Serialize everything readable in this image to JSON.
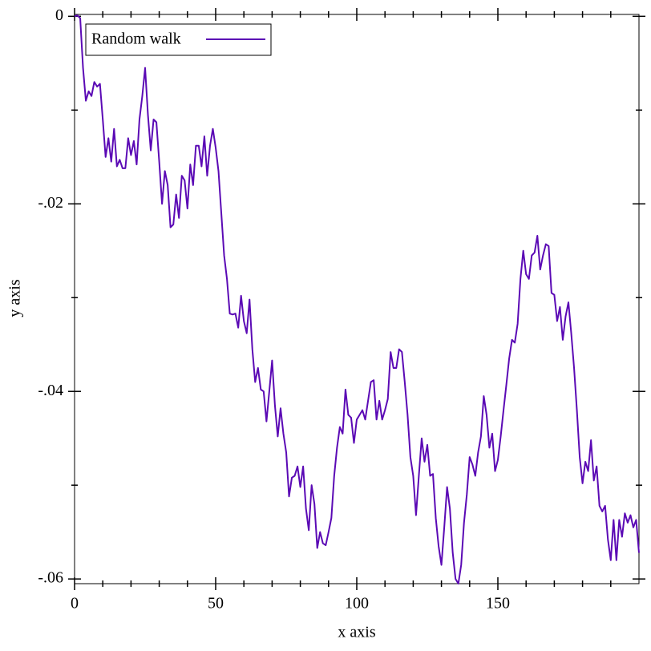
{
  "chart_data": {
    "type": "line",
    "xlabel": "x axis",
    "ylabel": "y axis",
    "xlim": [
      0,
      200
    ],
    "ylim": [
      -0.0605,
      0.0002
    ],
    "xticks": [
      0,
      50,
      100,
      150
    ],
    "xminor_ticks": [
      10,
      20,
      30,
      40,
      60,
      70,
      80,
      90,
      110,
      120,
      130,
      140,
      160,
      170,
      180,
      190
    ],
    "yticks": [
      {
        "value": 0,
        "label": "0"
      },
      {
        "value": -0.02,
        "label": "-.02"
      },
      {
        "value": -0.04,
        "label": "-.04"
      },
      {
        "value": -0.06,
        "label": "-.06"
      }
    ],
    "yminor_ticks": [
      -0.01,
      -0.03,
      -0.05
    ],
    "legend": "top-left",
    "x": [
      0,
      1,
      2,
      3,
      4,
      5,
      6,
      7,
      8,
      9,
      10,
      11,
      12,
      13,
      14,
      15,
      16,
      17,
      18,
      19,
      20,
      21,
      22,
      23,
      24,
      25,
      26,
      27,
      28,
      29,
      30,
      31,
      32,
      33,
      34,
      35,
      36,
      37,
      38,
      39,
      40,
      41,
      42,
      43,
      44,
      45,
      46,
      47,
      48,
      49,
      50,
      51,
      52,
      53,
      54,
      55,
      56,
      57,
      58,
      59,
      60,
      61,
      62,
      63,
      64,
      65,
      66,
      67,
      68,
      69,
      70,
      71,
      72,
      73,
      74,
      75,
      76,
      77,
      78,
      79,
      80,
      81,
      82,
      83,
      84,
      85,
      86,
      87,
      88,
      89,
      90,
      91,
      92,
      93,
      94,
      95,
      96,
      97,
      98,
      99,
      100,
      101,
      102,
      103,
      104,
      105,
      106,
      107,
      108,
      109,
      110,
      111,
      112,
      113,
      114,
      115,
      116,
      117,
      118,
      119,
      120,
      121,
      122,
      123,
      124,
      125,
      126,
      127,
      128,
      129,
      130,
      131,
      132,
      133,
      134,
      135,
      136,
      137,
      138,
      139,
      140,
      141,
      142,
      143,
      144,
      145,
      146,
      147,
      148,
      149,
      150,
      151,
      152,
      153,
      154,
      155,
      156,
      157,
      158,
      159,
      160,
      161,
      162,
      163,
      164,
      165,
      166,
      167,
      168,
      169,
      170,
      171,
      172,
      173,
      174,
      175,
      176,
      177,
      178,
      179,
      180,
      181,
      182,
      183,
      184,
      185,
      186,
      187,
      188,
      189,
      190,
      191,
      192,
      193,
      194,
      195,
      196,
      197,
      198,
      199,
      200
    ],
    "series": [
      {
        "name": "Random walk",
        "color": "#5b0ab5",
        "values": [
          0,
          0.0001,
          -0.0002,
          -0.0055,
          -0.009,
          -0.008,
          -0.0085,
          -0.007,
          -0.0075,
          -0.0072,
          -0.011,
          -0.015,
          -0.013,
          -0.0155,
          -0.012,
          -0.016,
          -0.0153,
          -0.0162,
          -0.0162,
          -0.013,
          -0.0148,
          -0.0133,
          -0.0158,
          -0.011,
          -0.0085,
          -0.0055,
          -0.0105,
          -0.0143,
          -0.011,
          -0.0113,
          -0.0155,
          -0.02,
          -0.0165,
          -0.018,
          -0.0225,
          -0.0222,
          -0.019,
          -0.0215,
          -0.017,
          -0.0175,
          -0.0205,
          -0.0158,
          -0.018,
          -0.0138,
          -0.0138,
          -0.016,
          -0.0128,
          -0.017,
          -0.0138,
          -0.012,
          -0.014,
          -0.0165,
          -0.021,
          -0.0255,
          -0.028,
          -0.0317,
          -0.0318,
          -0.0317,
          -0.0332,
          -0.0298,
          -0.0325,
          -0.0338,
          -0.0302,
          -0.0355,
          -0.039,
          -0.0375,
          -0.0398,
          -0.04,
          -0.0432,
          -0.04,
          -0.0367,
          -0.0415,
          -0.0448,
          -0.0418,
          -0.0445,
          -0.0465,
          -0.0512,
          -0.0492,
          -0.049,
          -0.048,
          -0.0502,
          -0.048,
          -0.0525,
          -0.0548,
          -0.05,
          -0.052,
          -0.0567,
          -0.055,
          -0.0562,
          -0.0564,
          -0.055,
          -0.0535,
          -0.049,
          -0.046,
          -0.0438,
          -0.0445,
          -0.0398,
          -0.0425,
          -0.0428,
          -0.0455,
          -0.043,
          -0.0425,
          -0.042,
          -0.043,
          -0.041,
          -0.039,
          -0.0388,
          -0.043,
          -0.041,
          -0.043,
          -0.042,
          -0.0408,
          -0.0358,
          -0.0375,
          -0.0375,
          -0.0355,
          -0.0358,
          -0.039,
          -0.0425,
          -0.047,
          -0.049,
          -0.0532,
          -0.049,
          -0.045,
          -0.0475,
          -0.0457,
          -0.049,
          -0.0488,
          -0.0535,
          -0.0565,
          -0.0585,
          -0.0545,
          -0.0502,
          -0.0525,
          -0.0572,
          -0.06,
          -0.0605,
          -0.0585,
          -0.054,
          -0.051,
          -0.047,
          -0.0478,
          -0.049,
          -0.0465,
          -0.0448,
          -0.0405,
          -0.0425,
          -0.046,
          -0.0445,
          -0.0485,
          -0.0473,
          -0.0448,
          -0.042,
          -0.0393,
          -0.0365,
          -0.0345,
          -0.0348,
          -0.0328,
          -0.028,
          -0.025,
          -0.0275,
          -0.028,
          -0.0255,
          -0.0252,
          -0.0234,
          -0.027,
          -0.0255,
          -0.0243,
          -0.0245,
          -0.0295,
          -0.0297,
          -0.0325,
          -0.031,
          -0.0345,
          -0.032,
          -0.0305,
          -0.0338,
          -0.0375,
          -0.042,
          -0.047,
          -0.0498,
          -0.0475,
          -0.0485,
          -0.0452,
          -0.0495,
          -0.048,
          -0.0522,
          -0.0528,
          -0.0522,
          -0.0558,
          -0.058,
          -0.0537,
          -0.058,
          -0.0537,
          -0.0555,
          -0.053,
          -0.054,
          -0.0532,
          -0.0545,
          -0.0537,
          -0.0572
        ]
      }
    ]
  }
}
